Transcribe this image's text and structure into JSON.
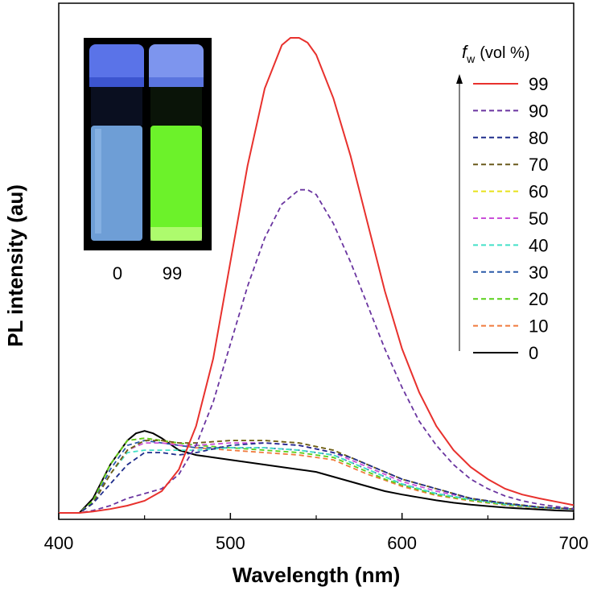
{
  "chart_data": {
    "type": "line",
    "xlabel": "Wavelength (nm)",
    "ylabel": "PL intensity (au)",
    "xlim": [
      400,
      700
    ],
    "ylim": [
      0,
      100
    ],
    "x_ticks": [
      "400",
      "500",
      "600",
      "700"
    ],
    "legend": {
      "title_symbol": "f",
      "title_subscript": "w",
      "title_text": "(vol %)",
      "position": "top-right"
    },
    "inset": {
      "description_labels": [
        "0",
        "99"
      ],
      "vial_colors": {
        "cap": "#5a73e8",
        "left_solution": "#6e9ed6",
        "right_solution": "#6cf22a",
        "background": "#000000"
      }
    },
    "series": [
      {
        "name": "99",
        "color": "#e8312d",
        "dash": "solid",
        "x": [
          412,
          420,
          430,
          440,
          450,
          460,
          470,
          480,
          490,
          500,
          510,
          520,
          530,
          535,
          540,
          545,
          550,
          560,
          570,
          580,
          590,
          600,
          610,
          620,
          630,
          640,
          650,
          660,
          670,
          680,
          690,
          700
        ],
        "y": [
          0,
          0.3,
          0.8,
          1.5,
          2.5,
          4.5,
          9,
          18,
          32,
          52,
          72,
          88,
          97,
          98.5,
          98.5,
          97.5,
          95,
          86,
          74,
          60,
          46,
          34,
          25,
          18,
          13,
          9.5,
          7,
          5,
          3.8,
          3,
          2.3,
          1.6
        ]
      },
      {
        "name": "90",
        "color": "#6a35a0",
        "dash": "dashed",
        "x": [
          412,
          420,
          430,
          440,
          450,
          460,
          470,
          480,
          490,
          500,
          510,
          520,
          530,
          540,
          545,
          550,
          560,
          570,
          580,
          590,
          600,
          610,
          620,
          630,
          640,
          650,
          660,
          670,
          680,
          690,
          700
        ],
        "y": [
          0,
          0.5,
          1.5,
          3,
          4,
          5,
          8,
          14,
          23,
          35,
          47,
          57,
          64,
          67,
          67,
          66,
          60,
          52,
          43,
          34,
          26,
          19,
          14,
          10,
          7,
          5,
          3.5,
          2.5,
          1.8,
          1.3,
          0.9
        ]
      },
      {
        "name": "80",
        "color": "#1f2d8c",
        "dash": "dashed",
        "x": [
          412,
          420,
          430,
          440,
          450,
          460,
          470,
          480,
          500,
          520,
          540,
          560,
          570,
          580,
          590,
          600,
          620,
          640,
          660,
          680,
          700
        ],
        "y": [
          0,
          2,
          6,
          10,
          12.5,
          12.5,
          12,
          12.5,
          14,
          14.5,
          14,
          12.5,
          11.5,
          10,
          8.5,
          7,
          5,
          3,
          2,
          1.2,
          0.8
        ]
      },
      {
        "name": "70",
        "color": "#6a5a1c",
        "dash": "dashed",
        "x": [
          412,
          420,
          430,
          440,
          450,
          460,
          470,
          480,
          500,
          520,
          540,
          560,
          570,
          580,
          590,
          600,
          620,
          640,
          660,
          680,
          700
        ],
        "y": [
          0,
          2,
          8,
          13,
          15,
          15,
          14.5,
          14.5,
          15,
          15,
          14.5,
          13,
          11.5,
          10,
          8.5,
          7,
          5,
          3,
          2,
          1.2,
          0.8
        ]
      },
      {
        "name": "60",
        "color": "#e8e21a",
        "dash": "dashed",
        "x": [
          412,
          420,
          430,
          440,
          450,
          460,
          470,
          480,
          500,
          520,
          540,
          560,
          570,
          580,
          590,
          600,
          620,
          640,
          660,
          680,
          700
        ],
        "y": [
          0,
          2,
          8,
          13,
          15,
          15,
          14.5,
          14.5,
          15,
          15,
          14.5,
          13,
          11.5,
          10,
          8.5,
          7,
          5,
          3,
          2,
          1.2,
          0.8
        ]
      },
      {
        "name": "50",
        "color": "#c94fd8",
        "dash": "dashed",
        "x": [
          412,
          420,
          430,
          440,
          450,
          460,
          470,
          480,
          500,
          520,
          540,
          560,
          570,
          580,
          590,
          600,
          620,
          640,
          660,
          680,
          700
        ],
        "y": [
          0,
          2,
          8,
          13,
          14.5,
          14.5,
          14,
          14,
          14.5,
          14.5,
          14,
          12.5,
          11,
          9.5,
          8,
          6.5,
          4.5,
          3,
          2,
          1.2,
          0.8
        ]
      },
      {
        "name": "40",
        "color": "#44e0c8",
        "dash": "dashed",
        "x": [
          412,
          420,
          430,
          440,
          450,
          460,
          470,
          480,
          500,
          520,
          540,
          560,
          570,
          580,
          590,
          600,
          620,
          640,
          660,
          680,
          700
        ],
        "y": [
          0,
          2,
          8,
          12.5,
          13,
          13,
          13,
          13,
          13.5,
          13.5,
          13,
          12,
          10.5,
          9,
          7.5,
          6,
          4,
          2.8,
          1.8,
          1.1,
          0.8
        ]
      },
      {
        "name": "30",
        "color": "#2a5aa8",
        "dash": "dashed",
        "x": [
          412,
          420,
          430,
          440,
          450,
          460,
          470,
          480,
          500,
          520,
          540,
          560,
          570,
          580,
          590,
          600,
          620,
          640,
          660,
          680,
          700
        ],
        "y": [
          0,
          2,
          9,
          14,
          15,
          14.5,
          14,
          13.5,
          13.5,
          13.5,
          13,
          12,
          10.5,
          9,
          7.5,
          6,
          4,
          2.8,
          1.8,
          1.1,
          0.8
        ]
      },
      {
        "name": "20",
        "color": "#58d018",
        "dash": "dashed",
        "x": [
          412,
          420,
          430,
          440,
          450,
          460,
          470,
          480,
          500,
          520,
          540,
          560,
          570,
          580,
          590,
          600,
          620,
          640,
          660,
          680,
          700
        ],
        "y": [
          0,
          2.5,
          10,
          15,
          15.5,
          15,
          14.5,
          14,
          13.5,
          13,
          12.5,
          11.5,
          10,
          8.5,
          7,
          5.8,
          3.8,
          2.6,
          1.7,
          1.1,
          0.8
        ]
      },
      {
        "name": "10",
        "color": "#f07a3c",
        "dash": "dashed",
        "x": [
          412,
          420,
          430,
          440,
          450,
          460,
          470,
          480,
          500,
          520,
          540,
          560,
          570,
          580,
          590,
          600,
          620,
          640,
          660,
          680,
          700
        ],
        "y": [
          0,
          2.5,
          10,
          15,
          15.5,
          15,
          14,
          13.5,
          13,
          12.5,
          12,
          11,
          9.5,
          8,
          6.8,
          5.5,
          3.6,
          2.5,
          1.6,
          1.0,
          0.8
        ]
      },
      {
        "name": "0",
        "color": "#000000",
        "dash": "solid",
        "x": [
          412,
          420,
          430,
          440,
          445,
          450,
          455,
          460,
          470,
          480,
          490,
          500,
          510,
          520,
          530,
          540,
          550,
          560,
          570,
          580,
          590,
          600,
          610,
          620,
          630,
          640,
          650,
          660,
          670,
          680,
          690,
          700
        ],
        "y": [
          0,
          3,
          10,
          15,
          16.5,
          17,
          16.5,
          15.5,
          13,
          12,
          11.5,
          11,
          10.5,
          10,
          9.5,
          9,
          8.5,
          7.5,
          6.5,
          5.5,
          4.5,
          3.8,
          3.2,
          2.6,
          2.1,
          1.7,
          1.4,
          1.1,
          0.9,
          0.7,
          0.5,
          0.4
        ]
      }
    ]
  }
}
